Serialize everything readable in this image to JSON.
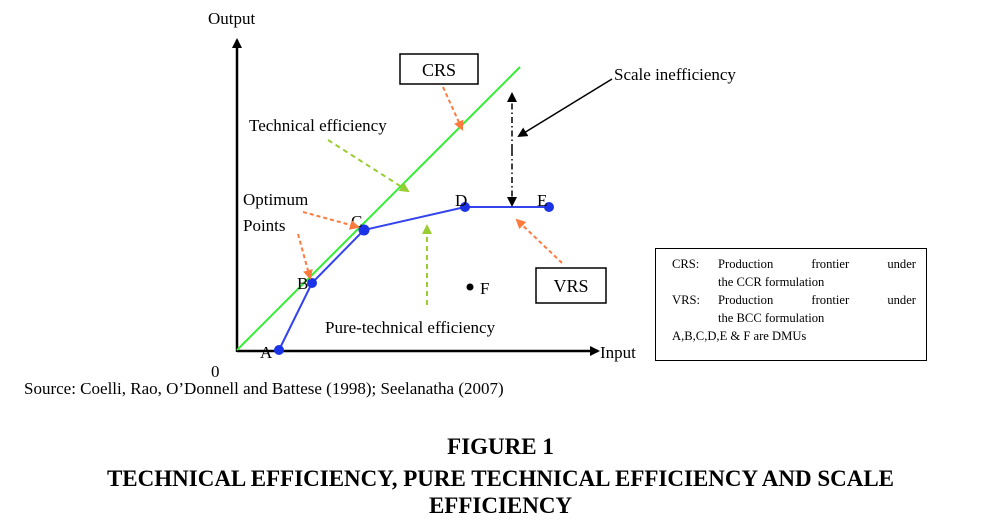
{
  "axes": {
    "y_label": "Output",
    "x_label": "Input",
    "origin": "0"
  },
  "points": [
    {
      "id": "A",
      "label": "A"
    },
    {
      "id": "B",
      "label": "B"
    },
    {
      "id": "C",
      "label": "C"
    },
    {
      "id": "D",
      "label": "D"
    },
    {
      "id": "E",
      "label": "E"
    },
    {
      "id": "F",
      "label": "F"
    }
  ],
  "boxes": {
    "crs": "CRS",
    "vrs": "VRS"
  },
  "annotations": {
    "scale_inefficiency": "Scale inefficiency",
    "technical_efficiency": "Technical efficiency",
    "optimum_line1": "Optimum",
    "optimum_line2": "Points",
    "pure_technical_efficiency": "Pure-technical efficiency"
  },
  "legend": {
    "crs_key": "CRS:",
    "crs_desc": "Production frontier under",
    "crs_sub": "the CCR formulation",
    "vrs_key": "VRS:",
    "vrs_desc": "Production frontier under",
    "vrs_sub": "the BCC formulation",
    "dmus": "A,B,C,D,E & F are DMUs"
  },
  "colors": {
    "crs_line": "#33ee33",
    "vrs_line": "#3344ee",
    "point": "#1a33e6",
    "arrow_orange": "#ff7a3c",
    "arrow_green": "#9acd32"
  },
  "source": "Source: Coelli, Rao, O’Donnell and Battese (1998); Seelanatha (2007)",
  "caption": {
    "figure": "FIGURE 1",
    "title_line1": "TECHNICAL EFFICIENCY, PURE TECHNICAL EFFICIENCY AND SCALE",
    "title_line2": "EFFICIENCY"
  }
}
